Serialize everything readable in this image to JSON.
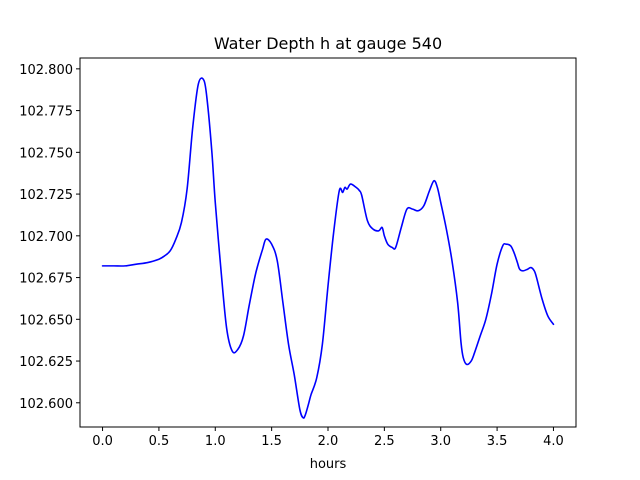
{
  "chart_data": {
    "type": "line",
    "title": "Water Depth h at gauge 540",
    "xlabel": "hours",
    "ylabel": "",
    "xlim": [
      -0.2,
      4.2
    ],
    "ylim": [
      102.5855,
      102.8065
    ],
    "x_ticks": [
      0.0,
      0.5,
      1.0,
      1.5,
      2.0,
      2.5,
      3.0,
      3.5,
      4.0
    ],
    "x_tick_labels": [
      "0.0",
      "0.5",
      "1.0",
      "1.5",
      "2.0",
      "2.5",
      "3.0",
      "3.5",
      "4.0"
    ],
    "y_ticks": [
      102.6,
      102.625,
      102.65,
      102.675,
      102.7,
      102.725,
      102.75,
      102.775,
      102.8
    ],
    "y_tick_labels": [
      "102.600",
      "102.625",
      "102.650",
      "102.675",
      "102.700",
      "102.725",
      "102.750",
      "102.775",
      "102.800"
    ],
    "grid": false,
    "series": [
      {
        "color": "#0000ff",
        "x": [
          0.0,
          0.1,
          0.2,
          0.3,
          0.4,
          0.5,
          0.55,
          0.6,
          0.65,
          0.7,
          0.75,
          0.8,
          0.85,
          0.9,
          0.93,
          0.97,
          1.0,
          1.05,
          1.1,
          1.15,
          1.2,
          1.25,
          1.3,
          1.35,
          1.38,
          1.42,
          1.45,
          1.5,
          1.55,
          1.6,
          1.65,
          1.7,
          1.75,
          1.78,
          1.8,
          1.83,
          1.85,
          1.9,
          1.95,
          2.0,
          2.05,
          2.1,
          2.13,
          2.15,
          2.17,
          2.2,
          2.25,
          2.28,
          2.3,
          2.35,
          2.4,
          2.45,
          2.48,
          2.5,
          2.53,
          2.57,
          2.6,
          2.65,
          2.7,
          2.75,
          2.8,
          2.85,
          2.9,
          2.94,
          2.97,
          3.0,
          3.05,
          3.1,
          3.15,
          3.18,
          3.2,
          3.23,
          3.27,
          3.3,
          3.35,
          3.4,
          3.45,
          3.5,
          3.55,
          3.58,
          3.62,
          3.65,
          3.68,
          3.7,
          3.73,
          3.77,
          3.8,
          3.83,
          3.85,
          3.9,
          3.95,
          4.0
        ],
        "y": [
          102.682,
          102.682,
          102.682,
          102.683,
          102.684,
          102.686,
          102.688,
          102.691,
          102.698,
          102.708,
          102.728,
          102.765,
          102.791,
          102.793,
          102.78,
          102.75,
          102.72,
          102.68,
          102.645,
          102.631,
          102.632,
          102.64,
          102.658,
          102.675,
          102.683,
          102.692,
          102.698,
          102.695,
          102.685,
          102.66,
          102.635,
          102.617,
          102.596,
          102.591,
          102.593,
          102.6,
          102.605,
          102.615,
          102.635,
          102.67,
          102.702,
          102.727,
          102.726,
          102.729,
          102.728,
          102.731,
          102.729,
          102.727,
          102.724,
          102.709,
          102.704,
          102.703,
          102.705,
          102.7,
          102.695,
          102.693,
          102.693,
          102.705,
          102.716,
          102.716,
          102.715,
          102.718,
          102.727,
          102.733,
          102.729,
          102.72,
          102.704,
          102.685,
          102.66,
          102.636,
          102.627,
          102.623,
          102.625,
          102.63,
          102.64,
          102.65,
          102.665,
          102.683,
          102.694,
          102.695,
          102.694,
          102.69,
          102.684,
          102.68,
          102.679,
          102.68,
          102.681,
          102.679,
          102.675,
          102.662,
          102.652,
          102.647
        ]
      }
    ]
  }
}
